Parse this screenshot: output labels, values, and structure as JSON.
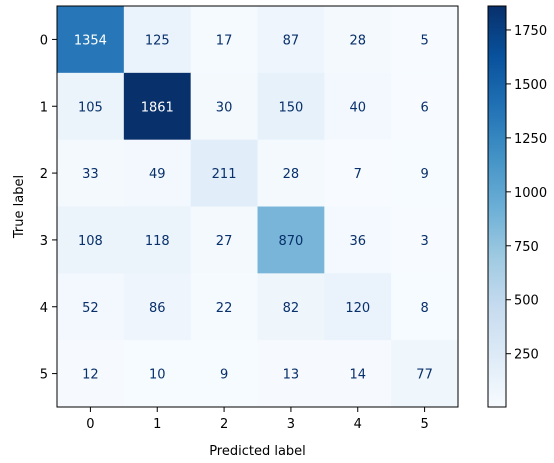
{
  "chart_data": {
    "type": "heatmap",
    "xlabel": "Predicted label",
    "ylabel": "True label",
    "x_categories": [
      "0",
      "1",
      "2",
      "3",
      "4",
      "5"
    ],
    "y_categories": [
      "0",
      "1",
      "2",
      "3",
      "4",
      "5"
    ],
    "values": [
      [
        1354,
        125,
        17,
        87,
        28,
        5
      ],
      [
        105,
        1861,
        30,
        150,
        40,
        6
      ],
      [
        33,
        49,
        211,
        28,
        7,
        9
      ],
      [
        108,
        118,
        27,
        870,
        36,
        3
      ],
      [
        52,
        86,
        22,
        82,
        120,
        8
      ],
      [
        12,
        10,
        9,
        13,
        14,
        77
      ]
    ],
    "colorbar": {
      "min": 3,
      "max": 1861,
      "ticks": [
        250,
        500,
        750,
        1000,
        1250,
        1500,
        1750
      ]
    },
    "colormap": "Blues",
    "colormap_light": "#f7fbff",
    "colormap_dark": "#08306b",
    "text_dark_color": "#08306b",
    "text_light_color": "#ffffff"
  }
}
